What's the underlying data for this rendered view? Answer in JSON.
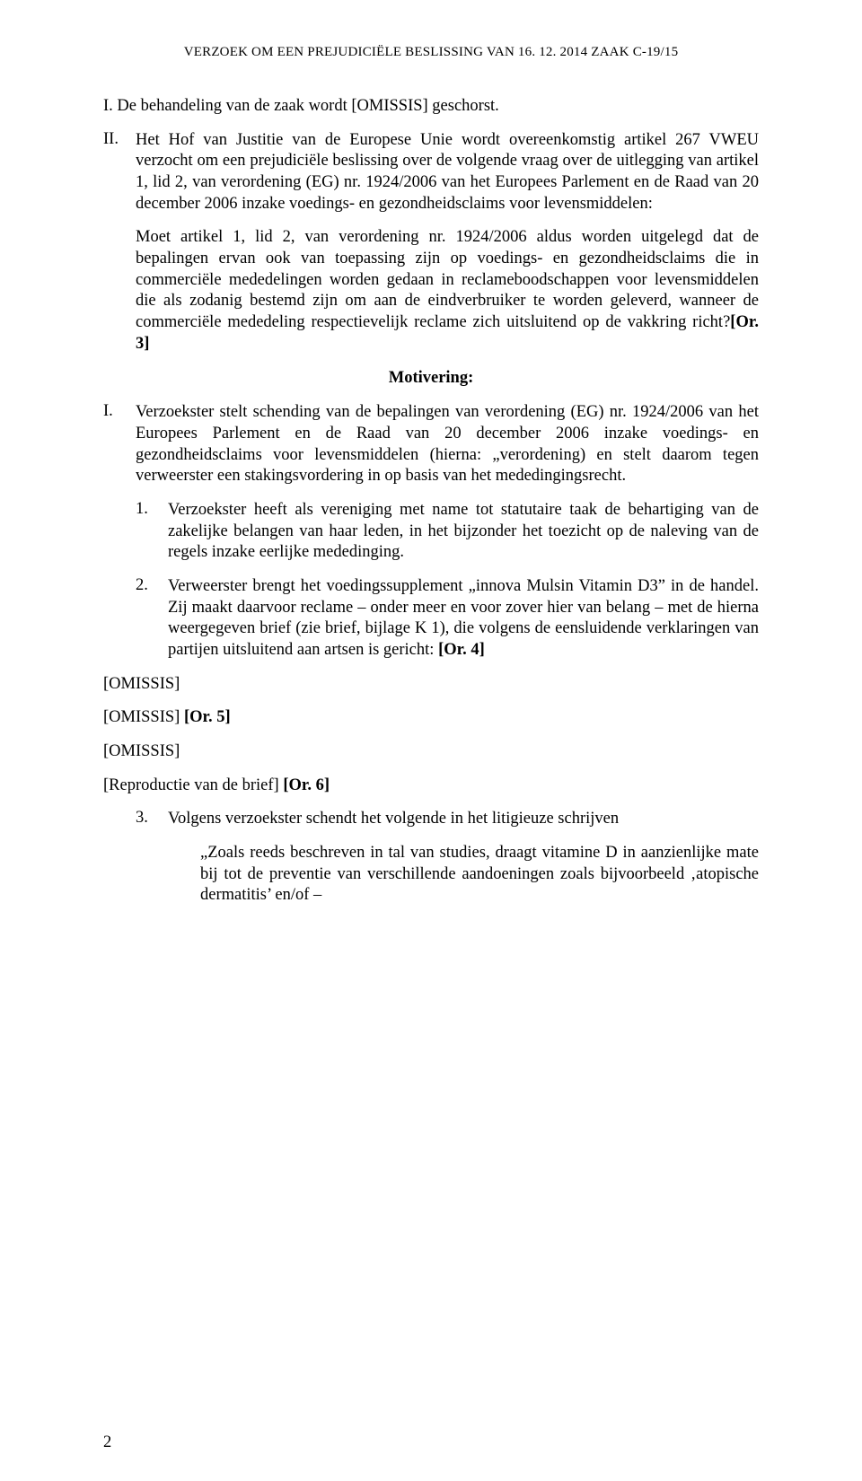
{
  "header": "VERZOEK OM EEN PREJUDICIËLE BESLISSING VAN 16. 12. 2014 ZAAK C-19/15",
  "I_line": "I. De behandeling van de zaak wordt [OMISSIS] geschorst.",
  "II_num": "II.",
  "II_body": "Het Hof van Justitie van de Europese Unie wordt overeenkomstig artikel 267 VWEU verzocht om een prejudiciële beslissing over de volgende vraag over de uitlegging van artikel 1, lid 2, van verordening (EG) nr. 1924/2006 van het Europees Parlement en de Raad van 20 december 2006 inzake voedings- en gezondheidsclaims voor levensmiddelen:",
  "question_pre": "Moet artikel 1, lid 2, van verordening nr. 1924/2006 aldus worden uitgelegd dat de bepalingen ervan ook van toepassing zijn op voedings- en gezondheidsclaims die in commerciële mededelingen worden gedaan in reclameboodschappen voor levensmiddelen die als zodanig bestemd zijn om aan de eindverbruiker te worden geleverd, wanneer de commerciële mededeling respectievelijk reclame zich uitsluitend op de vakkring richt?",
  "question_ref": "[Or. 3]",
  "motivering": "Motivering:",
  "Imot_num": "I.",
  "Imot_body": "Verzoekster stelt schending van de bepalingen van verordening (EG) nr. 1924/2006 van het Europees Parlement en de Raad van 20 december 2006 inzake voedings- en gezondheidsclaims voor levensmiddelen (hierna: „verordening) en stelt daarom tegen verweerster een stakingsvordering in op basis van het mededingingsrecht.",
  "p1_num": "1.",
  "p1_body": "Verzoekster heeft als vereniging met name tot statutaire taak de behartiging van de zakelijke belangen van haar leden, in het bijzonder het toezicht op de naleving van de regels inzake eerlijke mededinging.",
  "p2_num": "2.",
  "p2_body_pre": "Verweerster brengt het voedingssupplement „innova Mulsin Vitamin D3” in de handel. Zij maakt daarvoor reclame – onder meer en voor zover hier van belang – met de hierna weergegeven brief (zie brief, bijlage K 1), die volgens de eensluidende verklaringen van partijen uitsluitend aan artsen is gericht: ",
  "p2_ref": "[Or. 4]",
  "om1": "[OMISSIS]",
  "om2_pre": "[OMISSIS] ",
  "om2_ref": "[Or. 5]",
  "om3": "[OMISSIS]",
  "repro_pre": "[Reproductie van de brief] ",
  "repro_ref": "[Or. 6]",
  "p3_num": "3.",
  "p3_body": "Volgens verzoekster schendt het volgende in het litigieuze schrijven",
  "quote": "„Zoals reeds beschreven in tal van studies, draagt vitamine D in aanzienlijke mate bij tot de preventie van verschillende aandoeningen zoals bijvoorbeeld ‚atopische dermatitis’ en/of –",
  "pagenum": "2"
}
